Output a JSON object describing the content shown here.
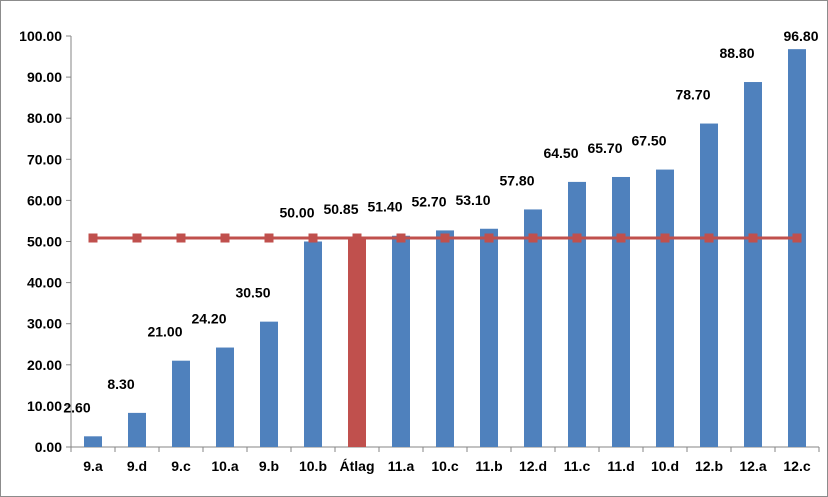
{
  "chart_data": {
    "type": "bar",
    "categories": [
      "9.a",
      "9.d",
      "9.c",
      "10.a",
      "9.b",
      "10.b",
      "Átlag",
      "11.a",
      "10.c",
      "11.b",
      "12.d",
      "11.c",
      "11.d",
      "10.d",
      "12.b",
      "12.a",
      "12.c"
    ],
    "value_labels": [
      "2.60",
      "8.30",
      "21.00",
      "24.20",
      "30.50",
      "50.00",
      "50.85",
      "51.40",
      "52.70",
      "53.10",
      "57.80",
      "64.50",
      "65.70",
      "67.50",
      "78.70",
      "88.80",
      "96.80"
    ],
    "series": [
      {
        "type": "bar",
        "values": [
          2.6,
          8.3,
          21.0,
          24.2,
          30.5,
          50.0,
          50.85,
          51.4,
          52.7,
          53.1,
          57.8,
          64.5,
          65.7,
          67.5,
          78.7,
          88.8,
          96.8
        ],
        "color": "#4F81BD",
        "highlight": {
          "category": "Átlag",
          "color": "#C0504D"
        }
      },
      {
        "type": "line",
        "values": [
          50.85,
          50.85,
          50.85,
          50.85,
          50.85,
          50.85,
          50.85,
          50.85,
          50.85,
          50.85,
          50.85,
          50.85,
          50.85,
          50.85,
          50.85,
          50.85,
          50.85
        ],
        "color": "#C0504D",
        "marker": "square"
      }
    ],
    "y_ticks": [
      "0.00",
      "10.00",
      "20.00",
      "30.00",
      "40.00",
      "50.00",
      "60.00",
      "70.00",
      "80.00",
      "90.00",
      "100.00"
    ],
    "ylim": [
      0,
      100
    ],
    "grid": false,
    "legend": "none",
    "title": "",
    "xlabel": "",
    "ylabel": ""
  }
}
